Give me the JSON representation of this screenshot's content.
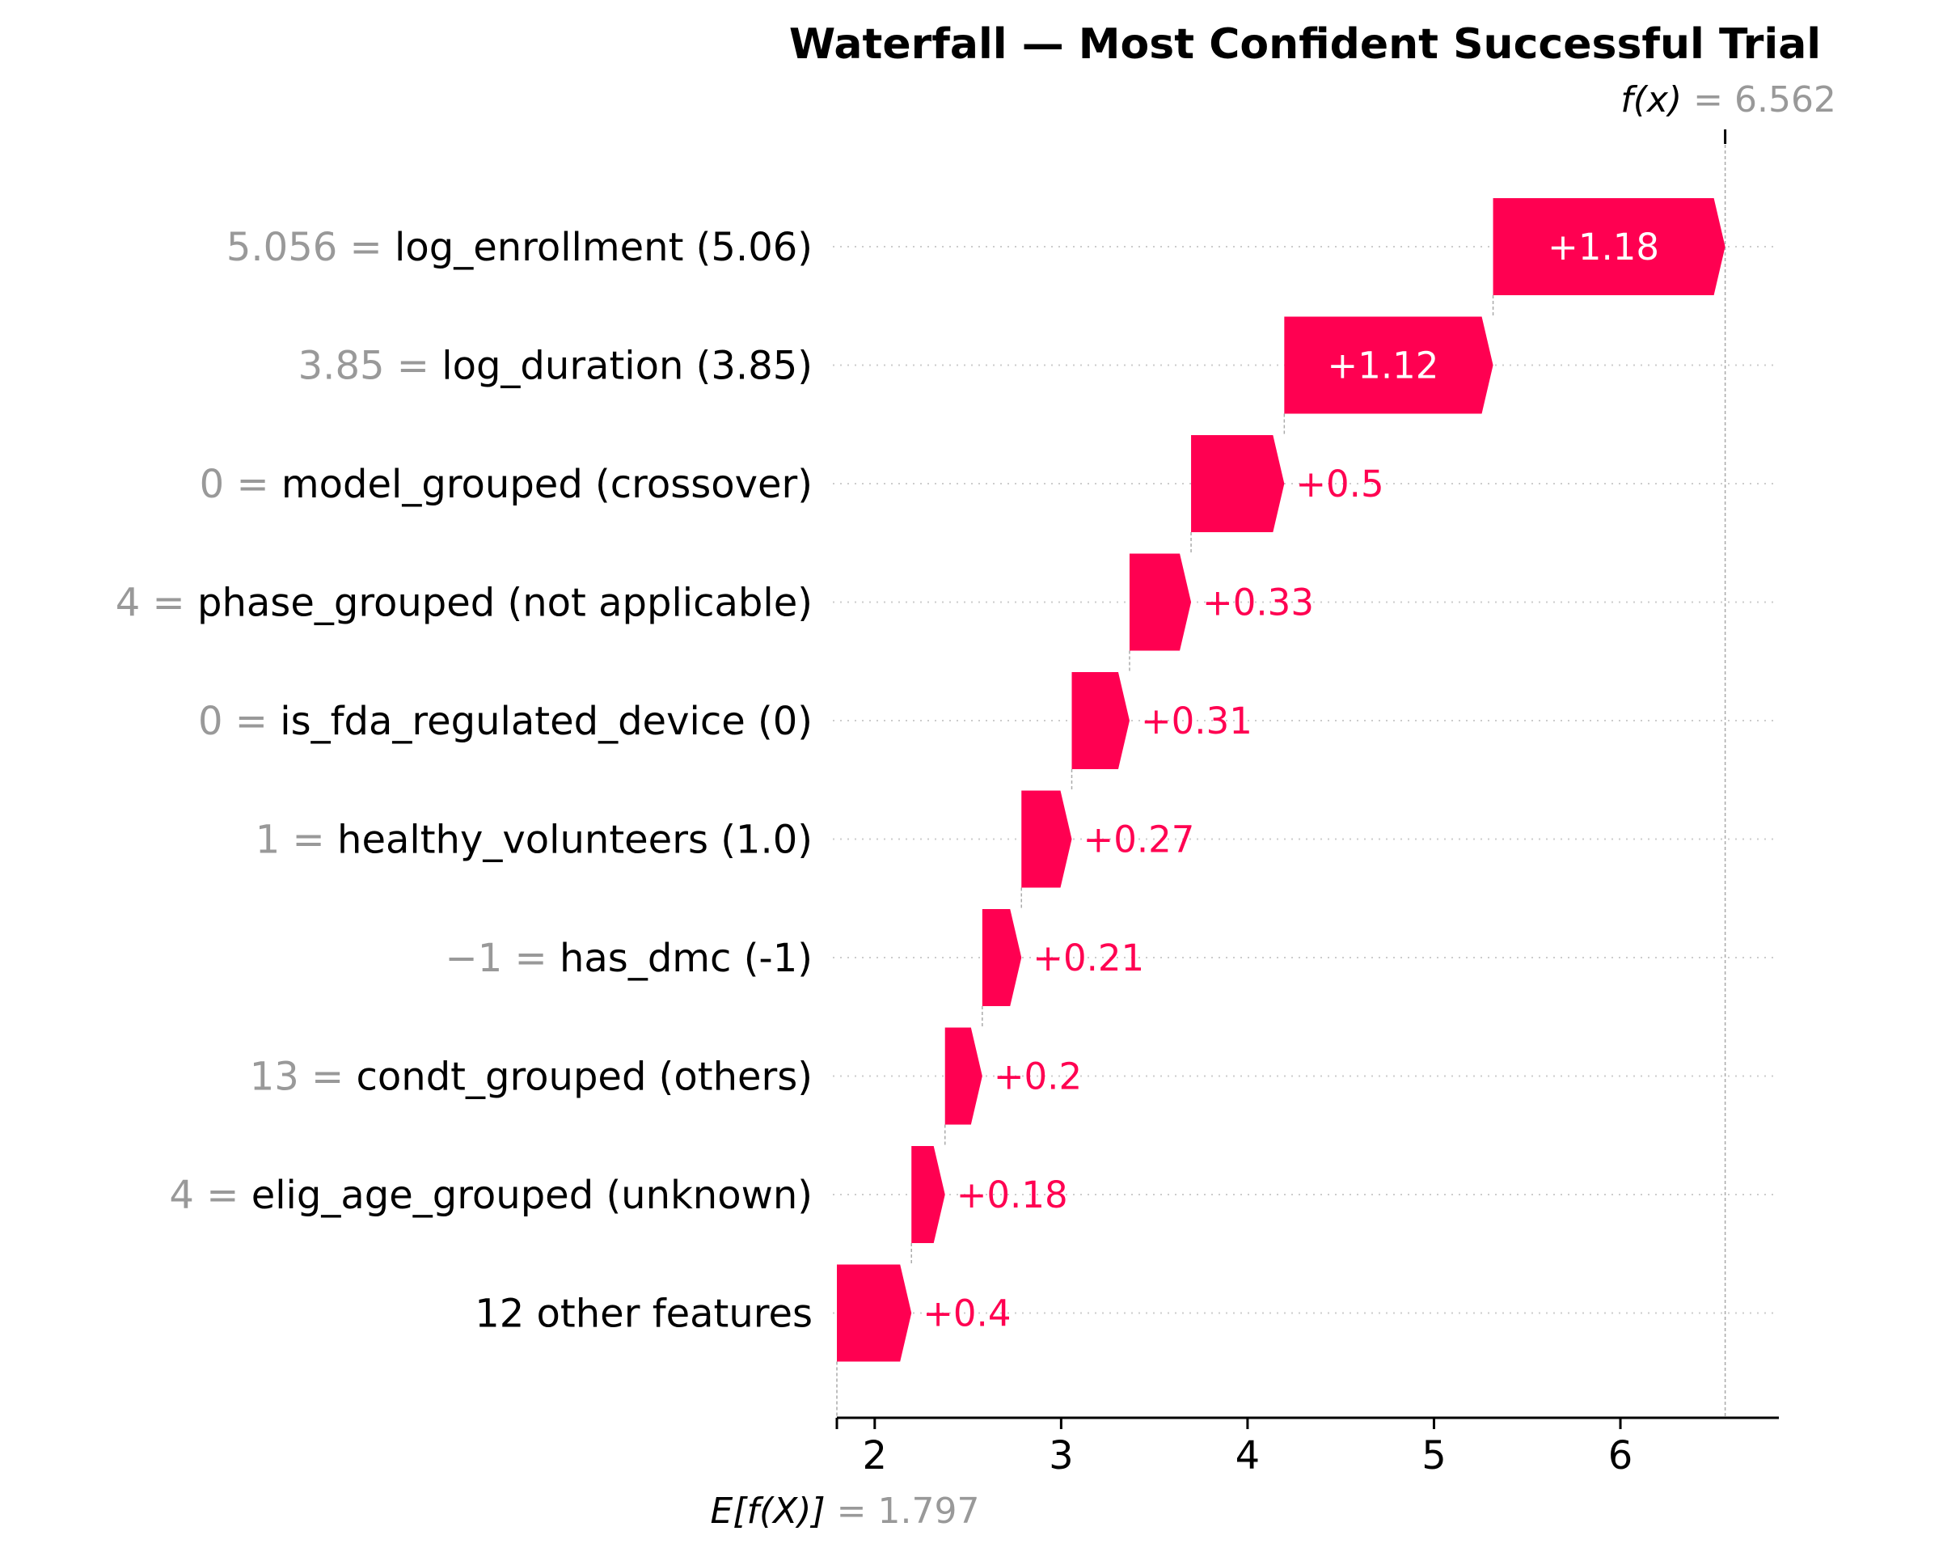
{
  "chart_data": {
    "type": "waterfall",
    "title": "Waterfall — Most Confident Successful Trial",
    "base_value": 1.797,
    "base_label": "E[f(X)]",
    "base_value_text": "= 1.797",
    "output_value": 6.562,
    "output_label": "f(x)",
    "output_value_text": "= 6.562",
    "xlim": [
      1.797,
      6.85
    ],
    "xticks": [
      2,
      3,
      4,
      5,
      6
    ],
    "bar_color": "#ff0051",
    "features": [
      {
        "value_text": "5.056 =",
        "name": "log_enrollment (5.06)",
        "contribution": 1.18,
        "label": "+1.18"
      },
      {
        "value_text": "3.85 =",
        "name": "log_duration (3.85)",
        "contribution": 1.12,
        "label": "+1.12"
      },
      {
        "value_text": "0 =",
        "name": "model_grouped (crossover)",
        "contribution": 0.5,
        "label": "+0.5"
      },
      {
        "value_text": "4 =",
        "name": "phase_grouped (not applicable)",
        "contribution": 0.33,
        "label": "+0.33"
      },
      {
        "value_text": "0 =",
        "name": "is_fda_regulated_device (0)",
        "contribution": 0.31,
        "label": "+0.31"
      },
      {
        "value_text": "1 =",
        "name": "healthy_volunteers (1.0)",
        "contribution": 0.27,
        "label": "+0.27"
      },
      {
        "value_text": "−1 =",
        "name": "has_dmc (-1)",
        "contribution": 0.21,
        "label": "+0.21"
      },
      {
        "value_text": "13 =",
        "name": "condt_grouped (others)",
        "contribution": 0.2,
        "label": "+0.2"
      },
      {
        "value_text": "4 =",
        "name": "elig_age_grouped (unknown)",
        "contribution": 0.18,
        "label": "+0.18"
      },
      {
        "value_text": "",
        "name": "12 other features",
        "contribution": 0.4,
        "label": "+0.4"
      }
    ]
  }
}
